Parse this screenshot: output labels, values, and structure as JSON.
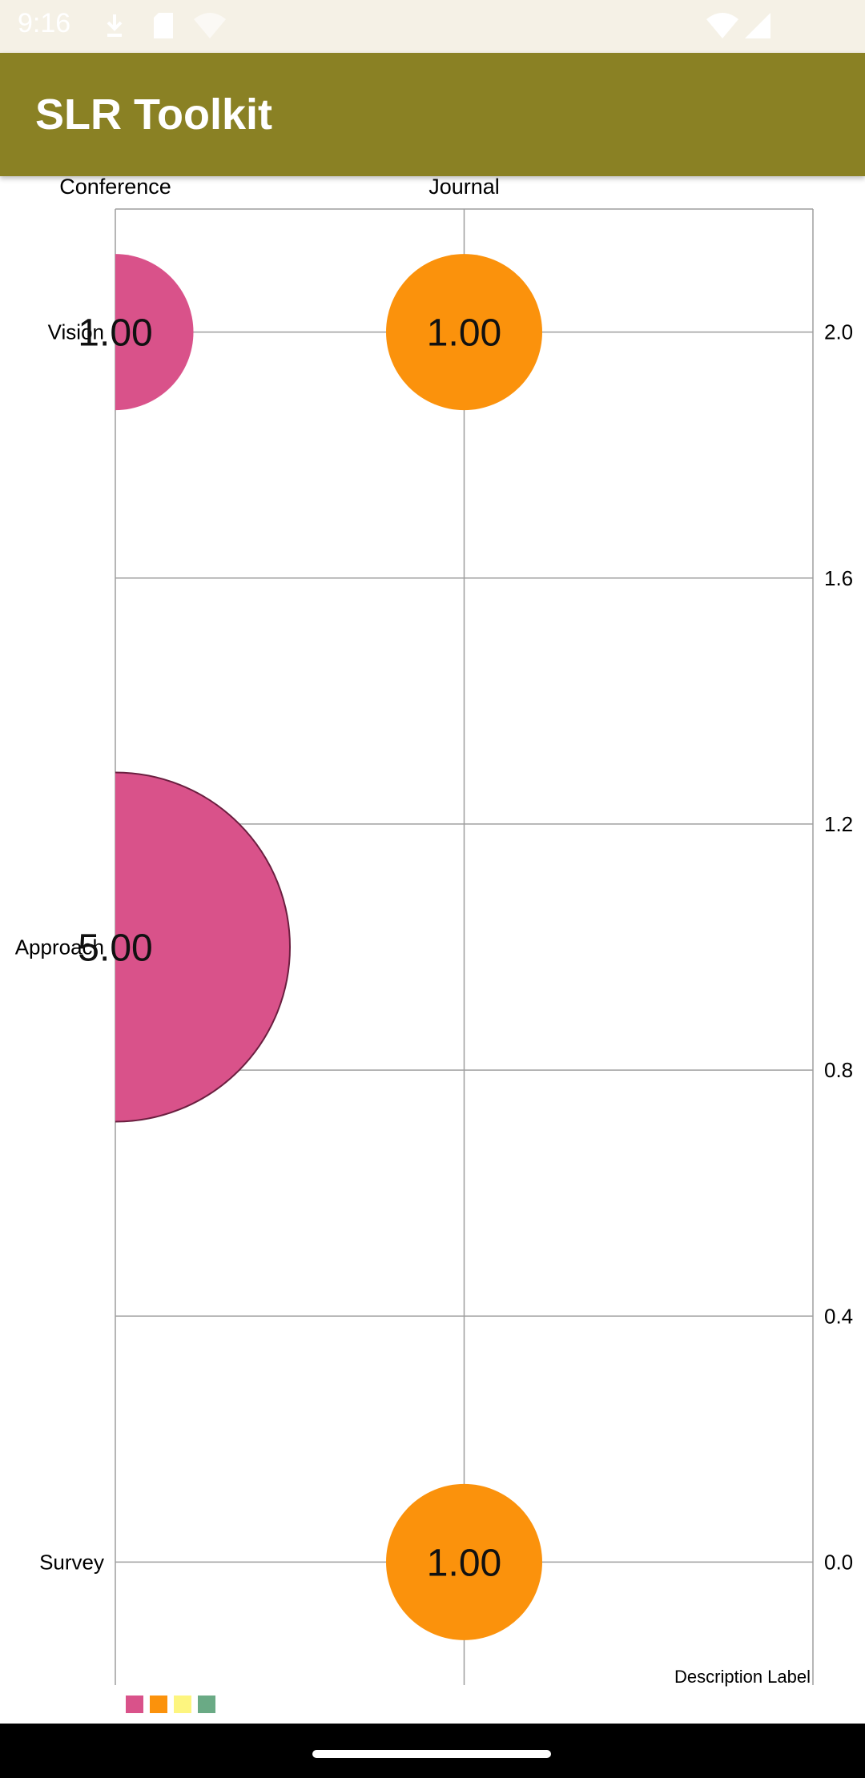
{
  "status_bar": {
    "time": "9:16",
    "icons": [
      "download-icon",
      "sd-card-icon",
      "wifi-question-icon",
      "wifi-icon",
      "signal-icon"
    ]
  },
  "app_bar": {
    "title": "SLR Toolkit"
  },
  "chart_data": {
    "type": "bubble",
    "title": "",
    "x_categories": [
      "Conference",
      "Journal"
    ],
    "y_categories": [
      "Survey",
      "Approach",
      "Vision"
    ],
    "y_axis_right_ticks": [
      0.0,
      0.4,
      0.8,
      1.2,
      1.6,
      2.0
    ],
    "ylim": [
      -0.2,
      2.2
    ],
    "description_label": "Description Label",
    "legend_colors": [
      "#d9528a",
      "#fb920c",
      "#fdf57f",
      "#6aaa85"
    ],
    "points": [
      {
        "x": "Conference",
        "y": "Vision",
        "value": 1.0,
        "label": "1.00",
        "color": "#d9528a"
      },
      {
        "x": "Journal",
        "y": "Vision",
        "value": 1.0,
        "label": "1.00",
        "color": "#fb920c"
      },
      {
        "x": "Conference",
        "y": "Approach",
        "value": 5.0,
        "label": "5.00",
        "color": "#d9528a"
      },
      {
        "x": "Journal",
        "y": "Survey",
        "value": 1.0,
        "label": "1.00",
        "color": "#fb920c"
      }
    ]
  }
}
